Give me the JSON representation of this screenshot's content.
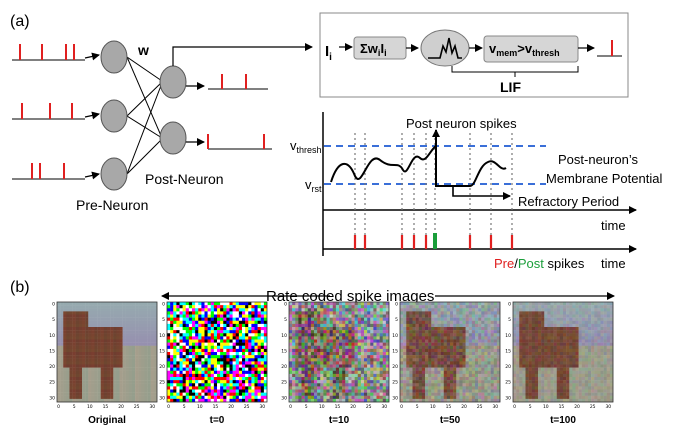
{
  "panel_a": {
    "label": "(a)",
    "weight_label": "w",
    "post_neuron_label": "Post-Neuron",
    "pre_neuron_label": "Pre-Neuron",
    "lif_input": "I",
    "lif_input_sub": "i",
    "sum_block": {
      "sigma": "Σw",
      "sub1": "i",
      "mid": "I",
      "sub2": "i"
    },
    "threshold_block": {
      "v1": "v",
      "sub1": "mem",
      "op": ">v",
      "sub2": "thresh"
    },
    "lif_label": "LIF",
    "v_thresh": {
      "base": "v",
      "sub": "thresh"
    },
    "v_rst": {
      "base": "v",
      "sub": "rst"
    },
    "post_spikes_label": "Post neuron spikes",
    "membrane_label_line1": "Post-neuron’s",
    "membrane_label_line2": "Membrane Potential",
    "refractory_label": "Refractory Period",
    "time_label_1": "time",
    "time_label_2": "time",
    "legend_pre": "Pre",
    "legend_slash": "/",
    "legend_post": "Post",
    "legend_rest": " spikes"
  },
  "panel_b": {
    "label": "(b)",
    "banner": "Rate coded spike images",
    "tick_values": [
      "0",
      "5",
      "10",
      "15",
      "20",
      "25",
      "30"
    ],
    "images": [
      {
        "caption": "Original",
        "kind": "original"
      },
      {
        "caption": "t=0",
        "kind": "noise"
      },
      {
        "caption": "t=10",
        "kind": "blend10"
      },
      {
        "caption": "t=50",
        "kind": "blend50"
      },
      {
        "caption": "t=100",
        "kind": "blend100"
      }
    ]
  },
  "colors": {
    "spike_red": "#e02020",
    "post_green": "#1a9e3a",
    "threshold_blue": "#3a6fd8",
    "neuron_gray": "#a8a8a8",
    "block_gray": "#d6d6d6"
  }
}
